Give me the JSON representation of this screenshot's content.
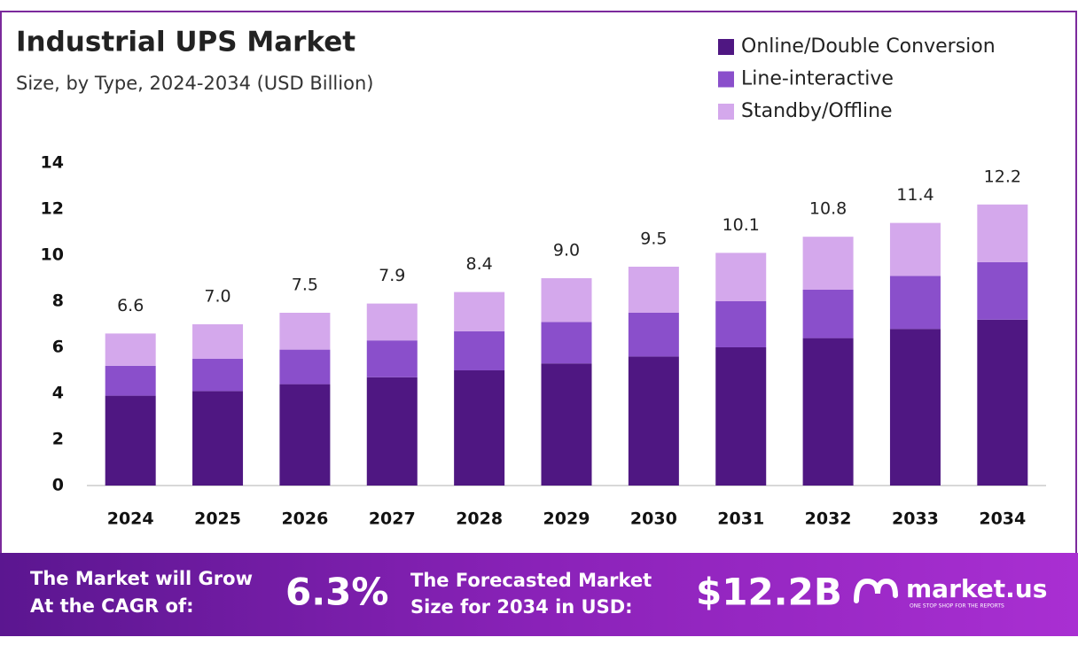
{
  "chart_data": {
    "type": "stacked_bar",
    "title": "Industrial UPS Market",
    "subtitle": "Size, by Type, 2024-2034 (USD Billion)",
    "categories": [
      "2024",
      "2025",
      "2026",
      "2027",
      "2028",
      "2029",
      "2030",
      "2031",
      "2032",
      "2033",
      "2034"
    ],
    "series": [
      {
        "name": "Online/Double Conversion",
        "color": "#4f1782",
        "values": [
          3.9,
          4.1,
          4.4,
          4.7,
          5.0,
          5.3,
          5.6,
          6.0,
          6.4,
          6.8,
          7.2
        ]
      },
      {
        "name": "Line-interactive",
        "color": "#8a4fcb",
        "values": [
          1.3,
          1.4,
          1.5,
          1.6,
          1.7,
          1.8,
          1.9,
          2.0,
          2.1,
          2.3,
          2.5
        ]
      },
      {
        "name": "Standby/Offline",
        "color": "#d4a8ec",
        "values": [
          1.4,
          1.5,
          1.6,
          1.6,
          1.7,
          1.9,
          2.0,
          2.1,
          2.3,
          2.3,
          2.5
        ]
      }
    ],
    "totals": [
      6.6,
      {
        "value": 7.0,
        "label": "7.0"
      },
      7.5,
      7.9,
      8.4,
      {
        "value": 9.0,
        "label": "9.0"
      },
      9.5,
      10.1,
      10.8,
      11.4,
      12.2
    ],
    "ylim": [
      0,
      14
    ],
    "yticks": [
      0,
      2,
      4,
      6,
      8,
      10,
      12,
      14
    ],
    "grid": false,
    "legend": "top-right"
  },
  "footer": {
    "cagr_text": [
      "The Market will Grow",
      "At the CAGR of:"
    ],
    "cagr_value": "6.3%",
    "forecast_text": [
      "The Forecasted Market",
      "Size for 2034 in USD:"
    ],
    "forecast_value": "$12.2B",
    "brand": "market.us",
    "tagline": "ONE STOP SHOP FOR THE REPORTS"
  }
}
